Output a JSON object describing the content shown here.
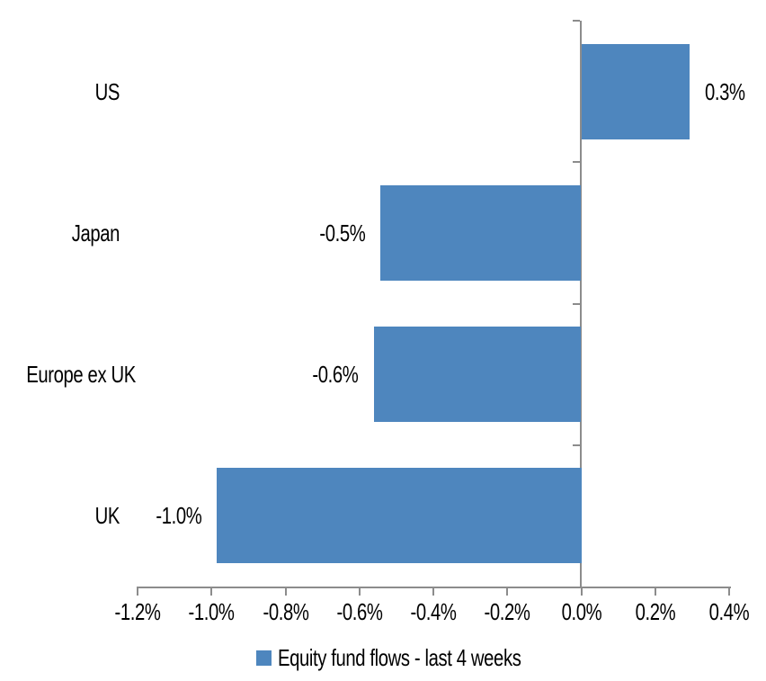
{
  "chart_data": {
    "type": "bar",
    "orientation": "horizontal",
    "title": "",
    "xlabel": "",
    "ylabel": "",
    "categories": [
      "US",
      "Japan",
      "Europe ex UK",
      "UK"
    ],
    "series": [
      {
        "name": "Equity fund flows - last 4 weeks",
        "values": [
          0.3,
          -0.5,
          -0.6,
          -1.0
        ],
        "values_precise": [
          0.293,
          -0.543,
          -0.561,
          -0.986
        ],
        "data_labels": [
          "0.3%",
          "-0.5%",
          "-0.6%",
          "-1.0%"
        ]
      }
    ],
    "value_unit": "%",
    "xlim": [
      -1.2,
      0.4
    ],
    "x_tick_values": [
      -1.2,
      -1.0,
      -0.8,
      -0.6,
      -0.4,
      -0.2,
      0.0,
      0.2,
      0.4
    ],
    "x_tick_labels": [
      "-1.2%",
      "-1.0%",
      "-0.8%",
      "-0.6%",
      "-0.4%",
      "-0.2%",
      "0.0%",
      "0.2%",
      "0.4%"
    ],
    "grid": false,
    "legend_position": "bottom",
    "colors": {
      "bar": "#4E86BE",
      "axis_line": "#8C8C8C",
      "text": "#000000",
      "background": "#FFFFFF"
    }
  }
}
